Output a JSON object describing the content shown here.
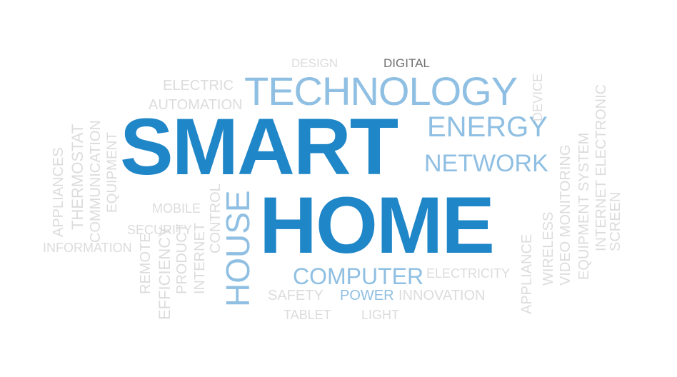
{
  "words": {
    "smart": "SMART",
    "home": "HOME",
    "house": "HOUSE",
    "technology": "TECHNOLOGY",
    "energy": "ENERGY",
    "network": "NETWORK",
    "computer": "COMPUTER",
    "power": "POWER",
    "digital": "DIGITAL",
    "design": "DESIGN",
    "electric": "ELECTRIC",
    "automation": "AUTOMATION",
    "appliances": "APPLIANCES",
    "thermostat": "THERMOSTAT",
    "communication": "COMMUNICATION",
    "equipment": "EQUIPMENT",
    "mobile": "MOBILE",
    "security": "SECURITY",
    "information": "INFORMATION",
    "remote": "REMOTE",
    "efficiency": "EFFICIENCY",
    "product": "PRODUCT",
    "internet": "INTERNET",
    "control": "CONTROL",
    "electricity": "ELECTRICITY",
    "innovation": "INNOVATION",
    "tablet": "TABLET",
    "light": "LIGHT",
    "wireless": "WIRELESS",
    "video_monitoring": "VIDEO MONITORING",
    "equipment_system": "EQUIPMENT SYSTEM",
    "internet_electronic": "INTERNET ELECTRONIC",
    "screen": "SCREEN",
    "device": "DEVICE",
    "appliance": "APPLIANCE",
    "safety": "SAFETY"
  },
  "colors": {
    "primary": "#1f86c8",
    "secondary": "#8fbfe2",
    "faint": "#dcdcdc",
    "dark": "#707070",
    "background": "#ffffff"
  }
}
